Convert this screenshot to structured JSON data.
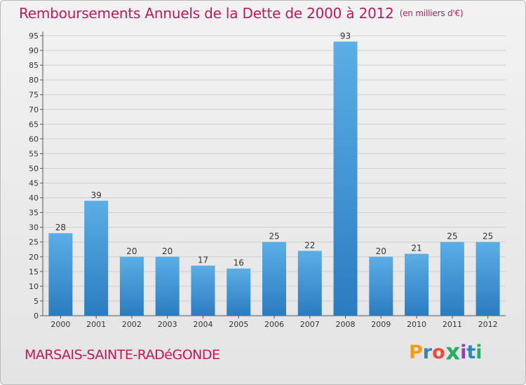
{
  "colors": {
    "accent": "#c2185b",
    "bar_top": "#5caee6",
    "bar_bottom": "#2a7cc0",
    "logo_letters": [
      "#f39c12",
      "#2e86c1",
      "#e74c3c",
      "#27ae60",
      "#8e44ad",
      "#2e86c1",
      "#27ae60"
    ]
  },
  "title": "Remboursements Annuels de la Dette de 2000 à 2012",
  "subtitle": "(en milliers d'€)",
  "place_name": "MARSAIS-SAINTE-RADéGONDE",
  "logo": {
    "text": "Proxiti",
    "letters": [
      "P",
      "r",
      "o",
      "x",
      "i",
      "t",
      "i"
    ]
  },
  "chart_data": {
    "type": "bar",
    "categories": [
      "2000",
      "2001",
      "2002",
      "2003",
      "2004",
      "2005",
      "2006",
      "2007",
      "2008",
      "2009",
      "2010",
      "2011",
      "2012"
    ],
    "values": [
      28,
      39,
      20,
      20,
      17,
      16,
      25,
      22,
      93,
      20,
      21,
      25,
      25
    ],
    "title": "Remboursements Annuels de la Dette de 2000 à 2012",
    "subtitle": "(en milliers d'€)",
    "xlabel": "",
    "ylabel": "",
    "ylim": [
      0,
      95
    ],
    "yticks": [
      0,
      5,
      10,
      15,
      20,
      25,
      30,
      35,
      40,
      45,
      50,
      55,
      60,
      65,
      70,
      75,
      80,
      85,
      90,
      95
    ],
    "grid": true,
    "data_labels": true
  }
}
